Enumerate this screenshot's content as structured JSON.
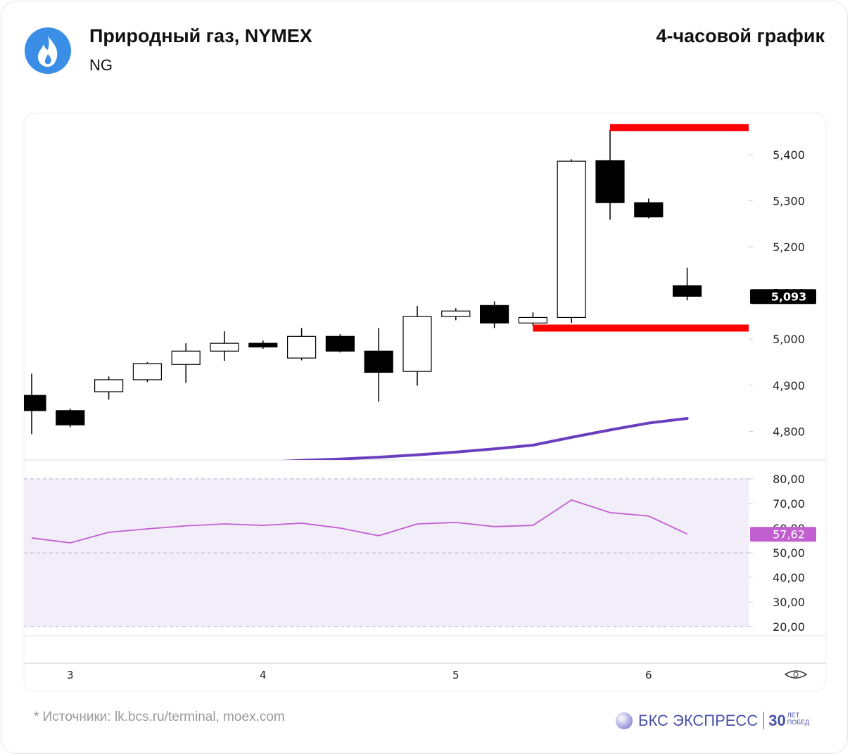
{
  "header": {
    "title": "Природный газ, NYMEX",
    "ticker": "NG",
    "timeframe": "4-часовой график"
  },
  "chart_data": [
    {
      "type": "candlestick",
      "categories": [
        null,
        "3",
        null,
        null,
        null,
        null,
        "4",
        null,
        null,
        null,
        null,
        "5",
        null,
        null,
        null,
        null,
        "6",
        null
      ],
      "open": [
        4878,
        4845,
        4886,
        4912,
        4945,
        4974,
        4991,
        4959,
        5006,
        4974,
        4930,
        5049,
        5073,
        5035,
        5047,
        5387,
        5296,
        5116
      ],
      "high": [
        4925,
        4849,
        4919,
        4950,
        4991,
        5017,
        4997,
        5024,
        5011,
        5024,
        5072,
        5067,
        5082,
        5058,
        5390,
        5454,
        5305,
        5155
      ],
      "low": [
        4794,
        4809,
        4869,
        4907,
        4905,
        4953,
        4979,
        4954,
        4971,
        4864,
        4899,
        5041,
        5024,
        5029,
        5035,
        5259,
        5262,
        5084
      ],
      "close": [
        4845,
        4814,
        4912,
        4947,
        4974,
        4991,
        4983,
        5006,
        4974,
        4928,
        5049,
        5061,
        5035,
        5047,
        5386,
        5296,
        5265,
        5093
      ],
      "up_color": "#ffffff",
      "down_color": "#000000",
      "ylim": [
        4738,
        5490
      ],
      "yticks": [
        {
          "value": 4800,
          "label": "4,800"
        },
        {
          "value": 4900,
          "label": "4,900"
        },
        {
          "value": 5000,
          "label": "5,000"
        },
        {
          "value": 5100,
          "label": "5,100"
        },
        {
          "value": 5200,
          "label": "5,200"
        },
        {
          "value": 5300,
          "label": "5,300"
        },
        {
          "value": 5400,
          "label": "5,400"
        }
      ],
      "last_price": {
        "value": 5093,
        "label": "5,093"
      },
      "levels": [
        {
          "value": 5459,
          "color": "#ff0000"
        },
        {
          "value": 5024,
          "color": "#ff0000"
        }
      ],
      "ma": {
        "color": "#6a3fbf",
        "values": [
          null,
          null,
          null,
          null,
          null,
          null,
          4733,
          4737,
          4740,
          4744,
          4749,
          4755,
          4762,
          4770,
          4787,
          4803,
          4818,
          4828
        ]
      }
    },
    {
      "type": "line",
      "color": "#c25fd0",
      "values": [
        56.0,
        54.0,
        58.3,
        59.7,
        60.9,
        61.7,
        61.1,
        62.0,
        60.0,
        56.9,
        61.7,
        62.3,
        60.6,
        61.1,
        71.4,
        66.3,
        64.9,
        57.62
      ],
      "ylim": [
        16.3,
        87.1
      ],
      "yticks": [
        {
          "value": 20,
          "label": "20,00"
        },
        {
          "value": 30,
          "label": "30,00"
        },
        {
          "value": 40,
          "label": "40,00"
        },
        {
          "value": 50,
          "label": "50,00"
        },
        {
          "value": 60,
          "label": "60,00"
        },
        {
          "value": 70,
          "label": "70,00"
        },
        {
          "value": 80,
          "label": "80,00"
        }
      ],
      "bands": [
        80,
        50,
        20
      ],
      "last_value": {
        "value": 57.62,
        "label": "57,62"
      }
    }
  ],
  "footer": {
    "source": "* Источники: lk.bcs.ru/terminal, moex.com",
    "brand": "БКС ЭКСПРЕСС",
    "years": "30",
    "years_note": "ЛЕТ ПОБЕД"
  }
}
